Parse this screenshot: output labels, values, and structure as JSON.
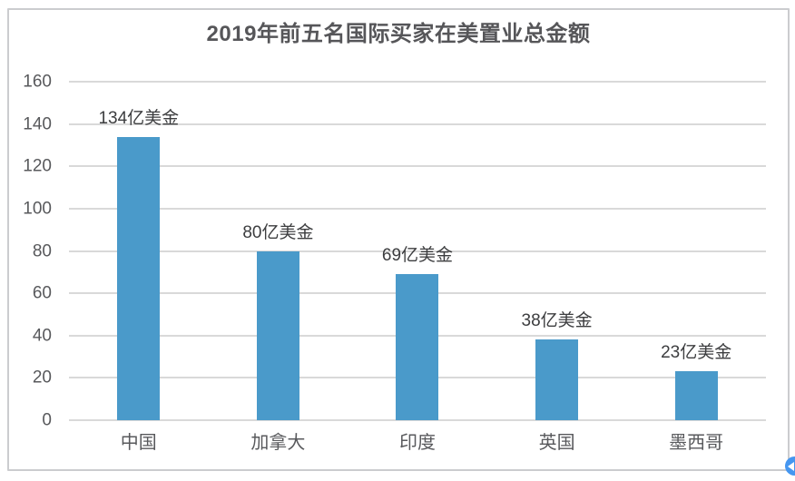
{
  "chart_data": {
    "type": "bar",
    "title": "2019年前五名国际买家在美置业总金额",
    "categories": [
      "中国",
      "加拿大",
      "印度",
      "英国",
      "墨西哥"
    ],
    "values": [
      134,
      80,
      69,
      38,
      23
    ],
    "data_labels": [
      "134亿美金",
      "80亿美金",
      "69亿美金",
      "38亿美金",
      "23亿美金"
    ],
    "unit": "亿美金",
    "xlabel": "",
    "ylabel": "",
    "ylim": [
      0,
      160
    ],
    "yticks": [
      0,
      20,
      40,
      60,
      80,
      100,
      120,
      140,
      160
    ],
    "grid": true,
    "legend": false,
    "bar_color": "#4a9aca",
    "grid_color": "#d9d9d9"
  },
  "frame": {
    "border_color": "#cbcccf",
    "background": "#ffffff"
  },
  "cursor_badge": {
    "color": "#4596f0",
    "description": "blue collaboration cursor clipped at right edge"
  }
}
